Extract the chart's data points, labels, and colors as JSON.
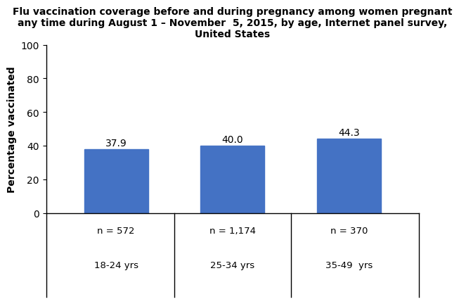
{
  "title_line1": "Flu vaccination coverage before and during pregnancy among women pregnant",
  "title_line2": "any time during August 1 – November  5, 2015, by age, Internet panel survey,",
  "title_line3": "United States",
  "categories": [
    "18-24 yrs",
    "25-34 yrs",
    "35-49  yrs"
  ],
  "n_labels": [
    "n = 572",
    "n = 1,174",
    "n = 370"
  ],
  "values": [
    37.9,
    40.0,
    44.3
  ],
  "bar_color": "#4472C4",
  "ylabel": "Percentage vaccinated",
  "ylim": [
    0,
    100
  ],
  "yticks": [
    0,
    20,
    40,
    60,
    80,
    100
  ],
  "value_label_fontsize": 10,
  "bar_width": 0.55,
  "background_color": "#ffffff",
  "title_fontsize": 10,
  "ylabel_fontsize": 10,
  "xlabel_fontsize": 9.5,
  "ytick_fontsize": 10
}
